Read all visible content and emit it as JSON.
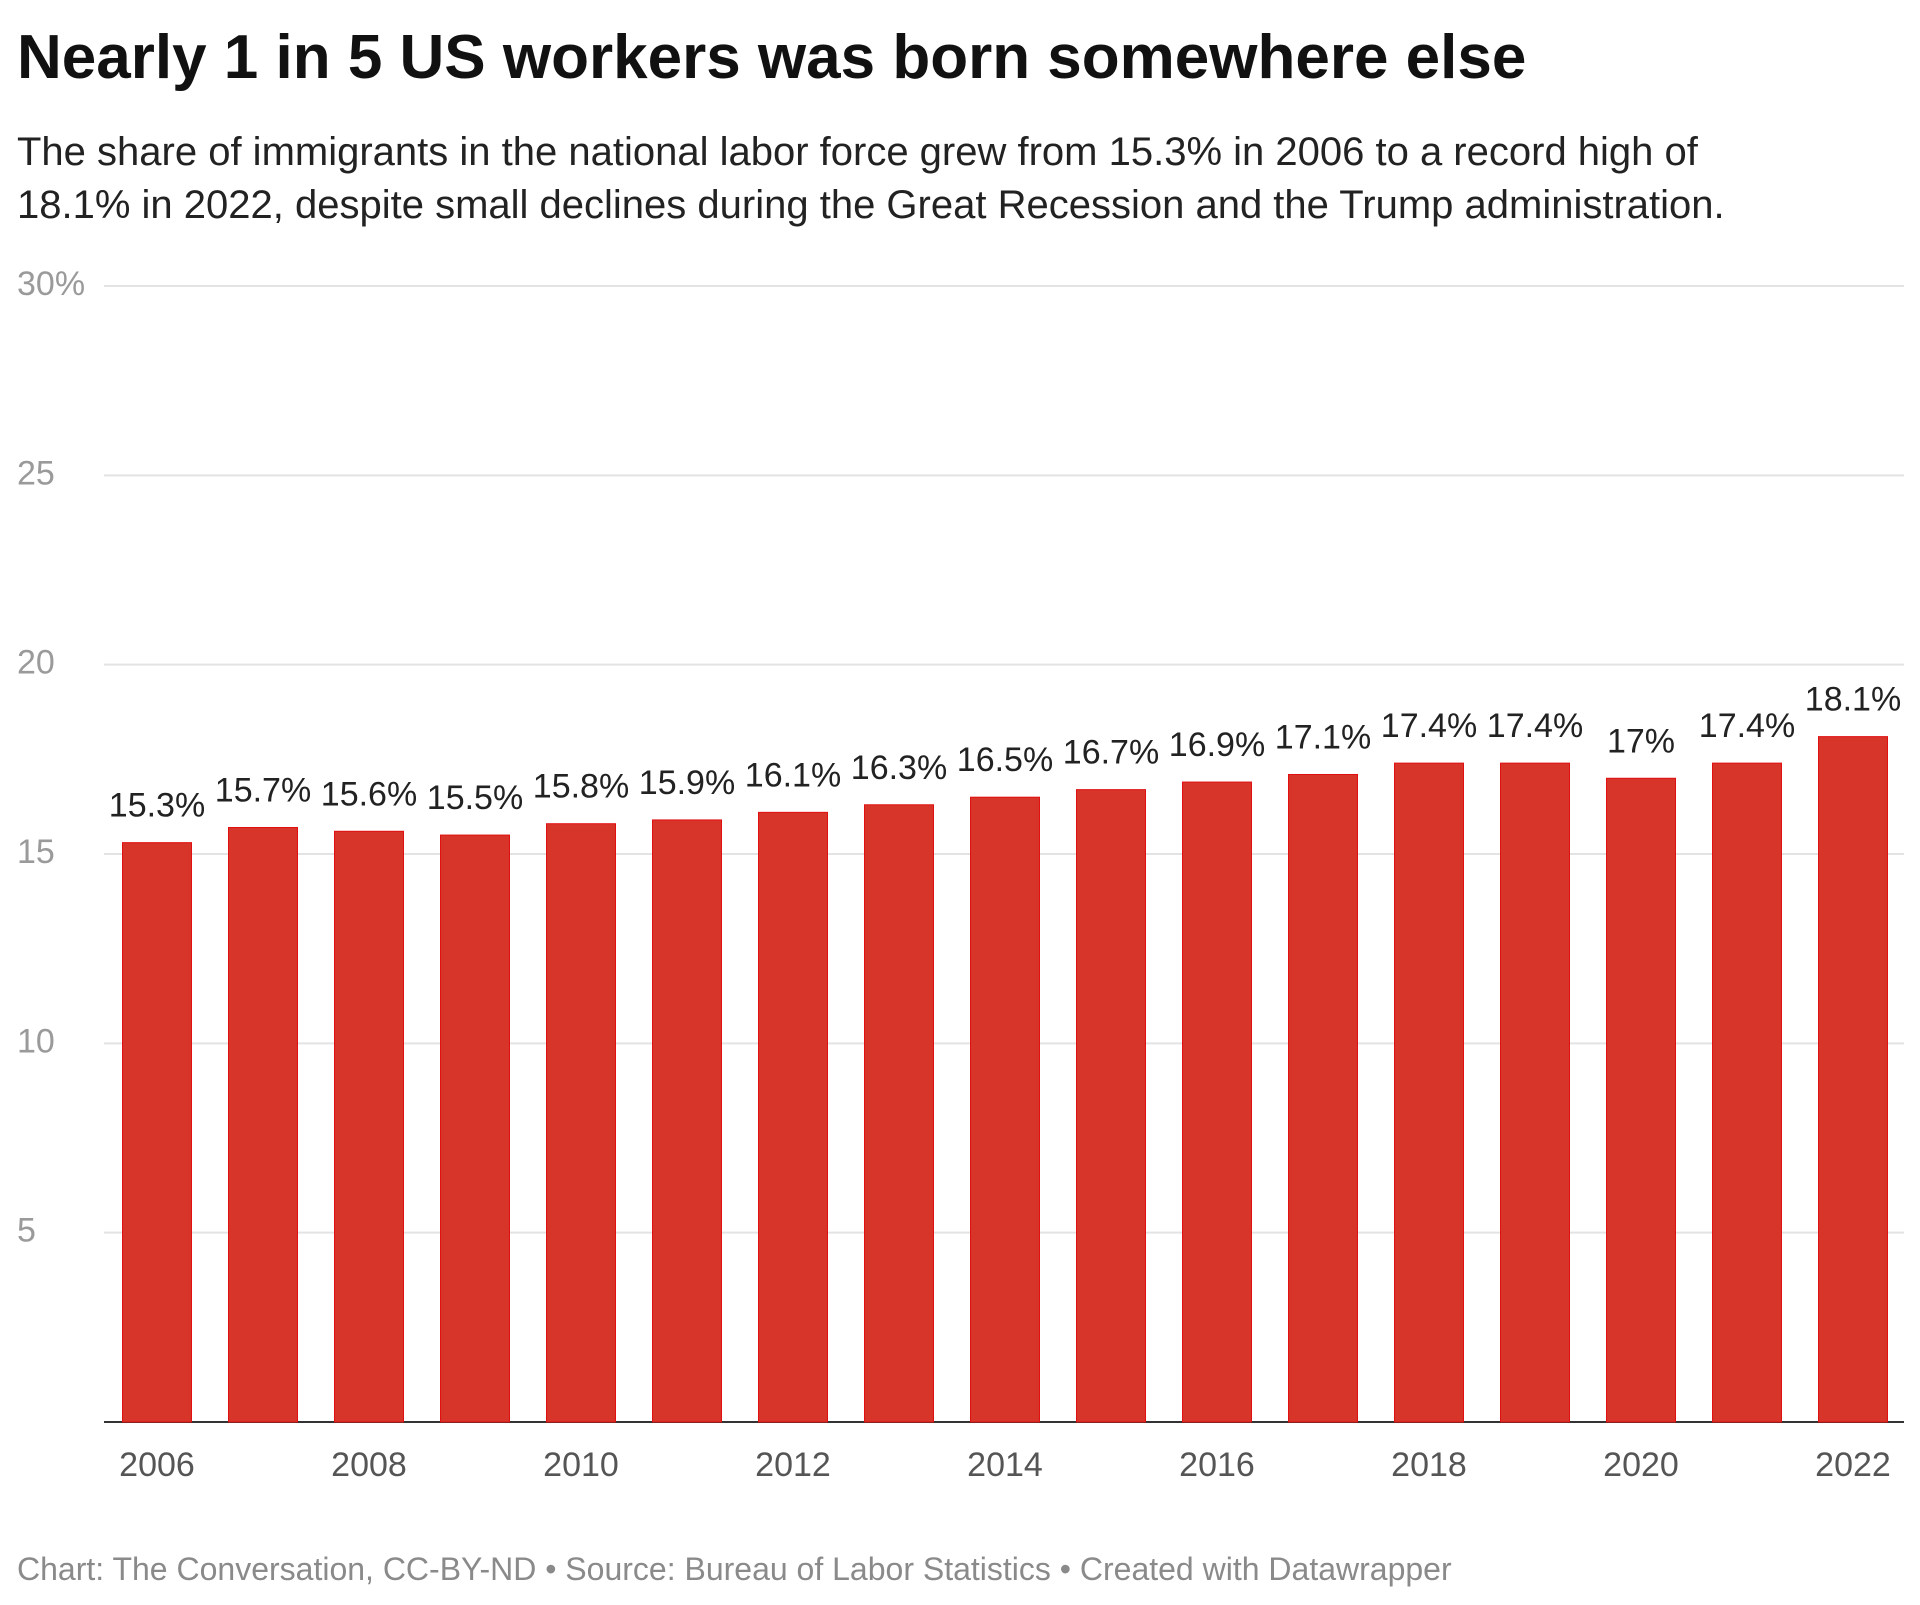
{
  "chart_data": {
    "type": "bar",
    "title": "Nearly 1 in 5 US workers was born somewhere else",
    "subtitle_lines": [
      "The share of immigrants in the national labor force grew from 15.3% in 2006 to a record high of",
      "18.1% in 2022, despite small declines during the Great Recession and the Trump administration."
    ],
    "categories": [
      "2006",
      "2007",
      "2008",
      "2009",
      "2010",
      "2011",
      "2012",
      "2013",
      "2014",
      "2015",
      "2016",
      "2017",
      "2018",
      "2019",
      "2020",
      "2021",
      "2022"
    ],
    "values": [
      15.3,
      15.7,
      15.6,
      15.5,
      15.8,
      15.9,
      16.1,
      16.3,
      16.5,
      16.7,
      16.9,
      17.1,
      17.4,
      17.4,
      17.0,
      17.4,
      18.1
    ],
    "data_labels": [
      "15.3%",
      "15.7%",
      "15.6%",
      "15.5%",
      "15.8%",
      "15.9%",
      "16.1%",
      "16.3%",
      "16.5%",
      "16.7%",
      "16.9%",
      "17.1%",
      "17.4%",
      "17.4%",
      "17%",
      "17.4%",
      "18.1%"
    ],
    "x_tick_labels": [
      "2006",
      "2008",
      "2010",
      "2012",
      "2014",
      "2016",
      "2018",
      "2020",
      "2022"
    ],
    "y_ticks": [
      5,
      10,
      15,
      20,
      25,
      30
    ],
    "y_tick_labels": [
      "5",
      "10",
      "15",
      "20",
      "25",
      "30%"
    ],
    "ylim": [
      0,
      30
    ],
    "xlabel": "",
    "ylabel": "",
    "grid": true,
    "bar_color": "#d7342a"
  },
  "footer": "Chart: The Conversation, CC-BY-ND • Source: Bureau of Labor Statistics • Created with Datawrapper"
}
